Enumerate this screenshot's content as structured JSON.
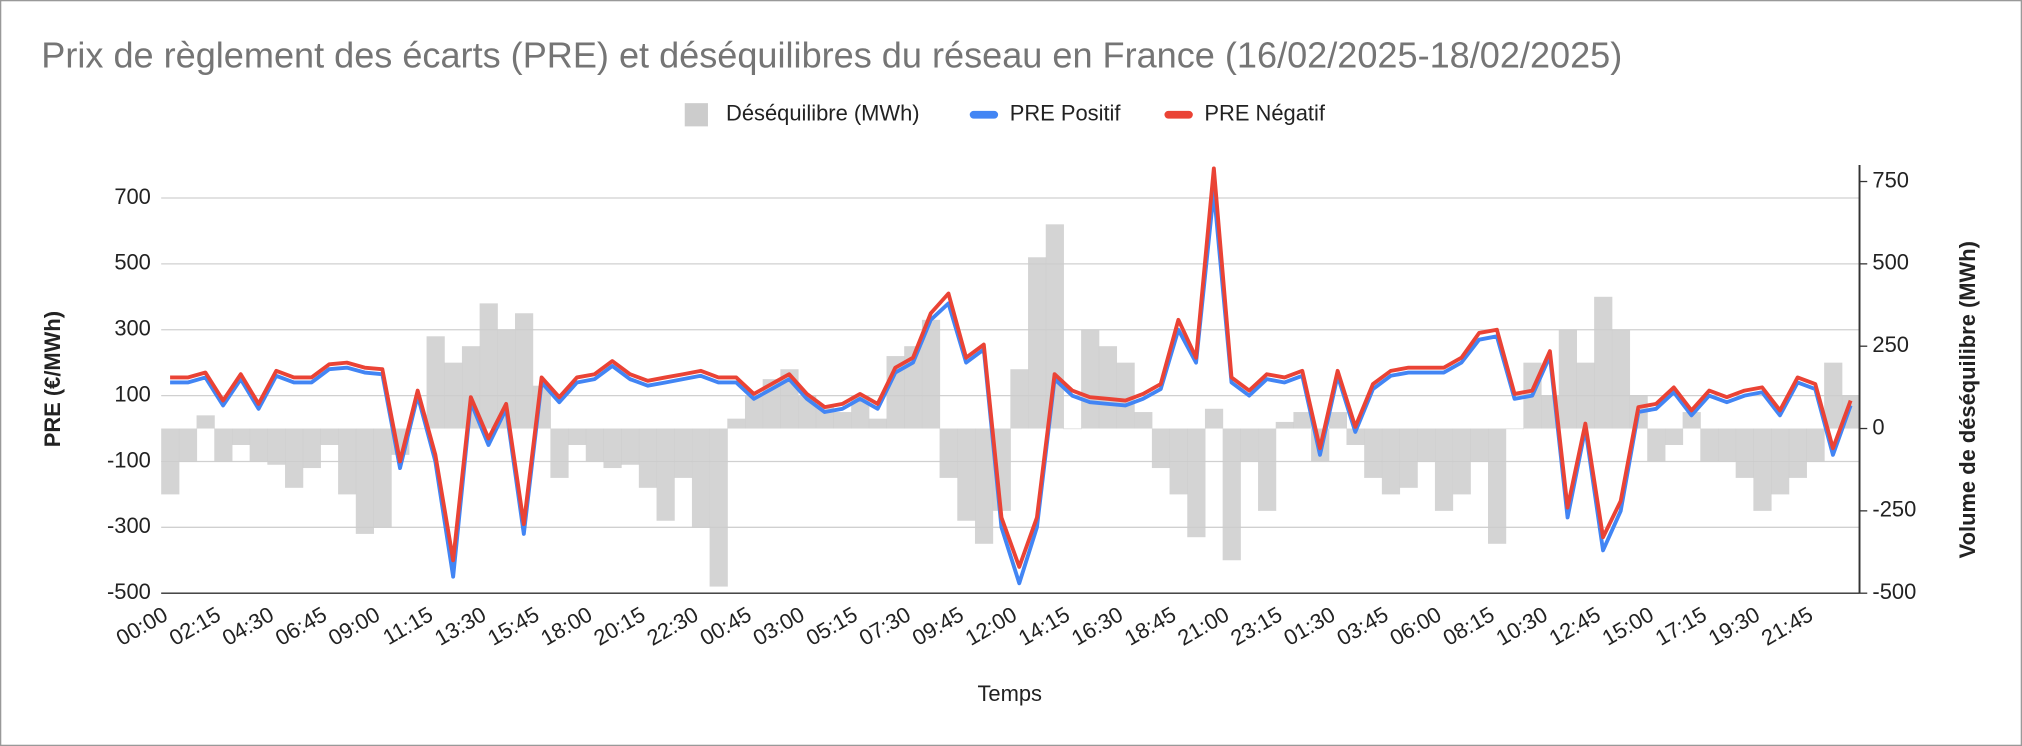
{
  "chart_data": {
    "type": "combo",
    "title": "Prix de règlement des écarts (PRE) et déséquilibres du réseau en France (16/02/2025-18/02/2025)",
    "x_label": "Temps",
    "y_label": "PRE (€/MWh)",
    "y2_label": "Volume de déséquilibre (MWh)",
    "categories": [
      "00:00",
      null,
      null,
      "02:15",
      null,
      null,
      "04:30",
      null,
      null,
      "06:45",
      null,
      null,
      "09:00",
      null,
      null,
      "11:15",
      null,
      null,
      "13:30",
      null,
      null,
      "15:45",
      null,
      null,
      "18:00",
      null,
      null,
      "20:15",
      null,
      null,
      "22:30",
      null,
      null,
      "00:45",
      null,
      null,
      "03:00",
      null,
      null,
      "05:15",
      null,
      null,
      "07:30",
      null,
      null,
      "09:45",
      null,
      null,
      "12:00",
      null,
      null,
      "14:15",
      null,
      null,
      "16:30",
      null,
      null,
      "18:45",
      null,
      null,
      "21:00",
      null,
      null,
      "23:15",
      null,
      null,
      "01:30",
      null,
      null,
      "03:45",
      null,
      null,
      "06:00",
      null,
      null,
      "08:15",
      null,
      null,
      "10:30",
      null,
      null,
      "12:45",
      null,
      null,
      "15:00",
      null,
      null,
      "17:15",
      null,
      null,
      "19:30",
      null,
      null,
      "21:45",
      null,
      null
    ],
    "series": [
      {
        "name": "Déséquilibre (MWh)",
        "type": "area",
        "axis": "y2",
        "color": "#cccccc",
        "values": [
          -200,
          -100,
          40,
          -100,
          -50,
          -100,
          -110,
          -180,
          -120,
          -50,
          -200,
          -320,
          -300,
          -80,
          0,
          280,
          200,
          250,
          380,
          300,
          350,
          130,
          -150,
          -50,
          -100,
          -120,
          -110,
          -180,
          -280,
          -150,
          -300,
          -480,
          30,
          100,
          150,
          180,
          100,
          70,
          50,
          100,
          30,
          220,
          250,
          330,
          -150,
          -280,
          -350,
          -250,
          180,
          520,
          620,
          0,
          300,
          250,
          200,
          50,
          -120,
          -200,
          -330,
          60,
          -400,
          -100,
          -250,
          20,
          50,
          -100,
          50,
          -50,
          -150,
          -200,
          -180,
          -100,
          -250,
          -200,
          -100,
          -350,
          0,
          200,
          100,
          300,
          200,
          400,
          300,
          100,
          -100,
          -50,
          50,
          -100,
          -100,
          -150,
          -250,
          -200,
          -150,
          -100,
          200,
          100
        ]
      },
      {
        "name": "PRE Positif",
        "type": "line",
        "color": "#4285f4",
        "values": [
          140,
          140,
          155,
          70,
          150,
          60,
          160,
          140,
          140,
          180,
          185,
          170,
          165,
          -120,
          100,
          -100,
          -450,
          80,
          -50,
          60,
          -320,
          140,
          80,
          140,
          150,
          190,
          150,
          130,
          140,
          150,
          160,
          140,
          140,
          90,
          120,
          150,
          90,
          50,
          60,
          90,
          60,
          170,
          200,
          330,
          380,
          200,
          240,
          -300,
          -470,
          -300,
          150,
          100,
          80,
          75,
          70,
          90,
          120,
          300,
          200,
          720,
          140,
          100,
          150,
          140,
          160,
          -80,
          160,
          -10,
          120,
          160,
          170,
          170,
          170,
          200,
          270,
          280,
          90,
          100,
          220,
          -270,
          0,
          -370,
          -250,
          50,
          60,
          110,
          40,
          100,
          80,
          100,
          110,
          40,
          140,
          120,
          -80,
          70
        ]
      },
      {
        "name": "PRE Négatif",
        "type": "line",
        "color": "#ea4335",
        "values": [
          155,
          155,
          170,
          85,
          165,
          75,
          175,
          155,
          155,
          195,
          200,
          185,
          180,
          -100,
          115,
          -80,
          -400,
          95,
          -30,
          75,
          -290,
          155,
          95,
          155,
          165,
          205,
          165,
          145,
          155,
          165,
          175,
          155,
          155,
          105,
          135,
          165,
          105,
          65,
          75,
          105,
          75,
          185,
          215,
          350,
          410,
          215,
          255,
          -270,
          -420,
          -270,
          165,
          115,
          95,
          90,
          85,
          105,
          135,
          330,
          215,
          790,
          155,
          115,
          165,
          155,
          175,
          -60,
          175,
          5,
          135,
          175,
          185,
          185,
          185,
          215,
          290,
          300,
          105,
          115,
          235,
          -240,
          15,
          -330,
          -220,
          65,
          75,
          125,
          55,
          115,
          95,
          115,
          125,
          55,
          155,
          135,
          -60,
          85
        ]
      }
    ],
    "ylim": [
      -500,
      800
    ],
    "yticks": [
      -500,
      -300,
      -100,
      100,
      300,
      500,
      700
    ],
    "y2lim": [
      -500,
      800
    ],
    "y2ticks": [
      -500,
      -250,
      0,
      250,
      500,
      750
    ],
    "grid": true,
    "legend": "top"
  }
}
